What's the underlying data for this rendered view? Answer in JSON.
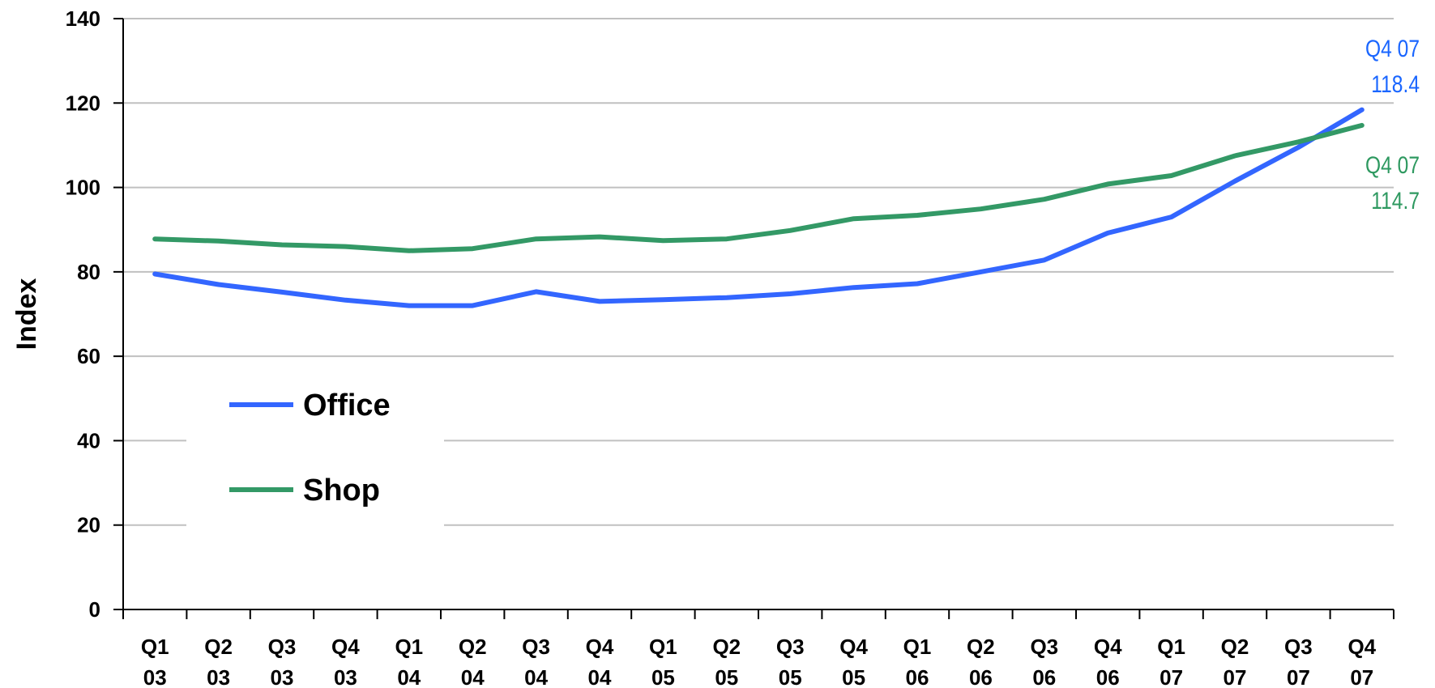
{
  "chart_data": {
    "type": "line",
    "ylabel": "Index",
    "ylim": [
      0,
      140
    ],
    "yticks": [
      0,
      20,
      40,
      60,
      80,
      100,
      120,
      140
    ],
    "grid": true,
    "legend_placement": "lower-left",
    "categories": [
      [
        "Q1",
        "03"
      ],
      [
        "Q2",
        "03"
      ],
      [
        "Q3",
        "03"
      ],
      [
        "Q4",
        "03"
      ],
      [
        "Q1",
        "04"
      ],
      [
        "Q2",
        "04"
      ],
      [
        "Q3",
        "04"
      ],
      [
        "Q4",
        "04"
      ],
      [
        "Q1",
        "05"
      ],
      [
        "Q2",
        "05"
      ],
      [
        "Q3",
        "05"
      ],
      [
        "Q4",
        "05"
      ],
      [
        "Q1",
        "06"
      ],
      [
        "Q2",
        "06"
      ],
      [
        "Q3",
        "06"
      ],
      [
        "Q4",
        "06"
      ],
      [
        "Q1",
        "07"
      ],
      [
        "Q2",
        "07"
      ],
      [
        "Q3",
        "07"
      ],
      [
        "Q4",
        "07"
      ]
    ],
    "series": [
      {
        "name": "Office",
        "color": "#3366ff",
        "values": [
          79.5,
          77.0,
          75.2,
          73.3,
          72.0,
          72.0,
          75.3,
          73.0,
          73.4,
          73.9,
          74.8,
          76.3,
          77.2,
          80.0,
          82.8,
          89.2,
          93.0,
          101.5,
          109.5,
          118.4
        ]
      },
      {
        "name": "Shop",
        "color": "#339966",
        "values": [
          87.8,
          87.3,
          86.4,
          86.0,
          85.0,
          85.5,
          87.8,
          88.3,
          87.4,
          87.8,
          89.8,
          92.6,
          93.4,
          94.9,
          97.2,
          100.8,
          102.8,
          107.5,
          110.8,
          114.7
        ]
      }
    ],
    "annotations": [
      {
        "series": "Office",
        "lines": [
          "Q4 07",
          "118.4"
        ],
        "color": "#1a66ff"
      },
      {
        "series": "Shop",
        "lines": [
          "Q4 07",
          "114.7"
        ],
        "color": "#2e9960"
      }
    ]
  }
}
